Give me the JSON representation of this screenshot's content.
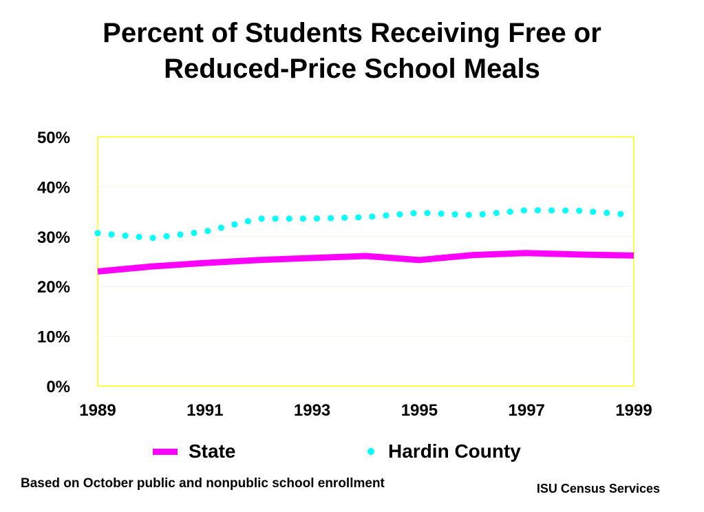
{
  "title_line1": "Percent of Students Receiving Free or",
  "title_line2": "Reduced-Price School Meals",
  "colors": {
    "state": "#ff00ff",
    "county": "#00ffff",
    "plot_border": "#ffff00",
    "grid": "#f4f4e8"
  },
  "chart_data": {
    "type": "line",
    "title": "Percent of Students Receiving Free or Reduced-Price School Meals",
    "xlabel": "",
    "ylabel": "",
    "xlim": [
      1989,
      1999
    ],
    "ylim": [
      0,
      50
    ],
    "x_ticks": [
      "1989",
      "1991",
      "1993",
      "1995",
      "1997",
      "1999"
    ],
    "y_ticks": [
      "0%",
      "10%",
      "20%",
      "30%",
      "40%",
      "50%"
    ],
    "legend_position": "bottom",
    "series": [
      {
        "name": "State",
        "style": "solid",
        "x": [
          1989,
          1990,
          1991,
          1992,
          1993,
          1994,
          1995,
          1996,
          1997,
          1998,
          1999
        ],
        "y": [
          23.0,
          24.0,
          24.7,
          25.3,
          25.7,
          26.1,
          25.3,
          26.3,
          26.7,
          26.4,
          26.2
        ]
      },
      {
        "name": "Hardin County",
        "style": "dotted",
        "x": [
          1989,
          1990,
          1991,
          1992,
          1993,
          1994,
          1995,
          1996,
          1997,
          1998,
          1999
        ],
        "y": [
          30.7,
          29.7,
          31.0,
          33.6,
          33.6,
          33.9,
          34.8,
          34.3,
          35.3,
          35.2,
          34.3
        ]
      }
    ]
  },
  "legend": {
    "state_label": "State",
    "county_label": "Hardin County"
  },
  "footer": {
    "note": "Based on October public and nonpublic school enrollment",
    "source": "ISU Census Services"
  }
}
